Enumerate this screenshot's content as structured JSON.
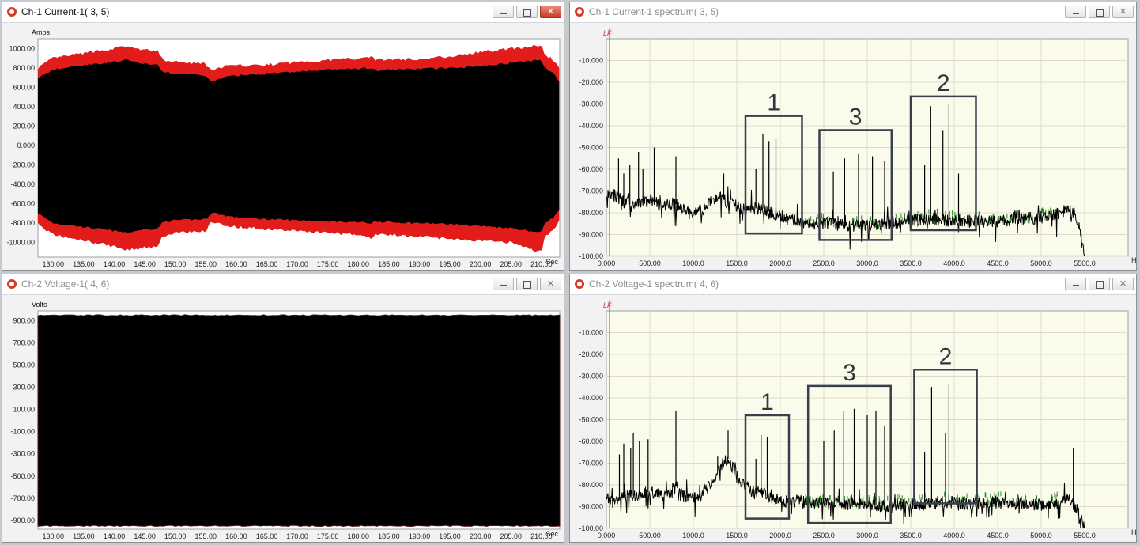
{
  "windows": {
    "current": {
      "title": "Ch-1 Current-1( 3, 5)",
      "unit": "Amps",
      "x_unit": "Sec",
      "y_ticks": [
        "1000.00",
        "800.00",
        "600.00",
        "400.00",
        "200.00",
        "0.000",
        "-200.00",
        "-400.00",
        "-600.00",
        "-800.00",
        "-1000.00"
      ],
      "x_ticks": [
        "130.00",
        "135.00",
        "140.00",
        "145.00",
        "150.00",
        "155.00",
        "160.00",
        "165.00",
        "170.00",
        "175.00",
        "180.00",
        "185.00",
        "190.00",
        "195.00",
        "200.00",
        "205.00",
        "210.00"
      ]
    },
    "current_spectrum": {
      "title": "Ch-1 Current-1 spectrum( 3, 5)",
      "marker": "LF",
      "x_unit": "Hz",
      "y_ticks": [
        "-10.000",
        "-20.000",
        "-30.000",
        "-40.000",
        "-50.000",
        "-60.000",
        "-70.000",
        "-80.000",
        "-90.000",
        "-100.00"
      ],
      "x_ticks": [
        "0.000",
        "500.00",
        "1000.0",
        "1500.0",
        "2000.0",
        "2500.0",
        "3000.0",
        "3500.0",
        "4000.0",
        "4500.0",
        "5000.0",
        "5500.0"
      ],
      "box_labels": [
        "1",
        "3",
        "2"
      ]
    },
    "voltage": {
      "title": "Ch-2 Voltage-1( 4, 6)",
      "unit": "Volts",
      "x_unit": "Sec",
      "y_ticks": [
        "900.00",
        "700.00",
        "500.00",
        "300.00",
        "100.00",
        "-100.00",
        "-300.00",
        "-500.00",
        "-700.00",
        "-900.00"
      ],
      "x_ticks": [
        "130.00",
        "135.00",
        "140.00",
        "145.00",
        "150.00",
        "155.00",
        "160.00",
        "165.00",
        "170.00",
        "175.00",
        "180.00",
        "185.00",
        "190.00",
        "195.00",
        "200.00",
        "205.00",
        "210.00"
      ]
    },
    "voltage_spectrum": {
      "title": "Ch-2 Voltage-1 spectrum( 4, 6)",
      "marker": "LF",
      "x_unit": "Hz",
      "y_ticks": [
        "-10.000",
        "-20.000",
        "-30.000",
        "-40.000",
        "-50.000",
        "-60.000",
        "-70.000",
        "-80.000",
        "-90.000",
        "-100.00"
      ],
      "x_ticks": [
        "0.000",
        "500.00",
        "1000.0",
        "1500.0",
        "2000.0",
        "2500.0",
        "3000.0",
        "3500.0",
        "4000.0",
        "4500.0",
        "5000.0",
        "5500.0"
      ],
      "box_labels": [
        "1",
        "3",
        "2"
      ]
    }
  },
  "colors": {
    "envelope": "#e21b1b",
    "trace": "#000000",
    "spectrum_bg": "#fbfbeb",
    "box": "#37404c",
    "alt_trace": "#2a8a2a"
  },
  "chart_data": [
    {
      "type": "area",
      "name": "Ch-1 Current-1( 3, 5)",
      "ylabel": "Amps",
      "xlabel": "Sec",
      "xlim": [
        127.5,
        213.0
      ],
      "ylim": [
        -1150,
        1100
      ],
      "x": [
        127.5,
        130,
        135,
        140,
        142,
        145,
        147,
        148,
        150,
        155,
        156,
        158,
        160,
        165,
        170,
        175,
        180,
        182,
        183,
        185,
        190,
        195,
        200,
        205,
        208,
        210,
        210.5,
        212,
        213
      ],
      "outer_upper": [
        800,
        900,
        950,
        1000,
        1020,
        980,
        980,
        880,
        860,
        840,
        760,
        820,
        820,
        830,
        860,
        880,
        900,
        920,
        880,
        890,
        890,
        920,
        960,
        1000,
        1020,
        1030,
        940,
        880,
        780
      ],
      "inner_upper": [
        700,
        780,
        830,
        860,
        880,
        840,
        840,
        760,
        740,
        720,
        660,
        700,
        720,
        740,
        760,
        780,
        790,
        800,
        770,
        780,
        790,
        800,
        820,
        850,
        870,
        880,
        800,
        740,
        660
      ],
      "inner_lower": [
        -700,
        -800,
        -840,
        -880,
        -900,
        -860,
        -860,
        -790,
        -770,
        -760,
        -690,
        -720,
        -740,
        -760,
        -770,
        -780,
        -790,
        -800,
        -780,
        -790,
        -800,
        -810,
        -830,
        -850,
        -880,
        -900,
        -800,
        -740,
        -660
      ],
      "outer_lower": [
        -810,
        -920,
        -980,
        -1040,
        -1080,
        -1050,
        -1050,
        -930,
        -900,
        -880,
        -780,
        -820,
        -840,
        -860,
        -880,
        -900,
        -920,
        -960,
        -910,
        -920,
        -940,
        -960,
        -980,
        -1000,
        -1060,
        -1100,
        -940,
        -870,
        -760
      ]
    },
    {
      "type": "line",
      "name": "Ch-1 Current-1 spectrum( 3, 5)",
      "xlabel": "Hz",
      "xlim": [
        0,
        6000
      ],
      "ylim": [
        -100,
        0
      ],
      "x": [
        0,
        100,
        200,
        300,
        400,
        500,
        600,
        700,
        800,
        900,
        1000,
        1100,
        1200,
        1300,
        1400,
        1500,
        1600,
        1700,
        1800,
        1900,
        2000,
        2100,
        2200,
        2300,
        2400,
        2500,
        2600,
        2800,
        3000,
        3200,
        3400,
        3600,
        3800,
        4000,
        4200,
        4400,
        4600,
        4800,
        5000,
        5200,
        5300,
        5400,
        5450,
        5500
      ],
      "y": [
        -72,
        -72,
        -75,
        -77,
        -76,
        -74,
        -76,
        -76,
        -76,
        -78,
        -80,
        -79,
        -75,
        -73,
        -75,
        -77,
        -79,
        -78,
        -78,
        -80,
        -81,
        -83,
        -84,
        -85,
        -85,
        -85,
        -85,
        -86,
        -86,
        -85,
        -84,
        -83,
        -83,
        -84,
        -84,
        -84,
        -84,
        -83,
        -82,
        -80,
        -78,
        -81,
        -90,
        -100
      ],
      "peaks": [
        {
          "x": 140,
          "y": -55
        },
        {
          "x": 200,
          "y": -62
        },
        {
          "x": 270,
          "y": -58
        },
        {
          "x": 370,
          "y": -52
        },
        {
          "x": 420,
          "y": -60
        },
        {
          "x": 550,
          "y": -50
        },
        {
          "x": 800,
          "y": -54
        },
        {
          "x": 1350,
          "y": -62
        },
        {
          "x": 1720,
          "y": -60
        },
        {
          "x": 1800,
          "y": -44
        },
        {
          "x": 1870,
          "y": -47
        },
        {
          "x": 1950,
          "y": -46
        },
        {
          "x": 2610,
          "y": -61
        },
        {
          "x": 2740,
          "y": -55
        },
        {
          "x": 2900,
          "y": -53
        },
        {
          "x": 3060,
          "y": -54
        },
        {
          "x": 3200,
          "y": -56
        },
        {
          "x": 3280,
          "y": -57
        },
        {
          "x": 3660,
          "y": -58
        },
        {
          "x": 3730,
          "y": -31
        },
        {
          "x": 3870,
          "y": -42
        },
        {
          "x": 3940,
          "y": -30
        },
        {
          "x": 4050,
          "y": -62
        },
        {
          "x": 5300,
          "y": -77
        }
      ]
    },
    {
      "type": "area",
      "name": "Ch-2 Voltage-1( 4, 6)",
      "ylabel": "Volts",
      "xlabel": "Sec",
      "xlim": [
        127.5,
        213.0
      ],
      "ylim": [
        -980,
        990
      ],
      "x": [
        127.5,
        213.0
      ],
      "upper": [
        950,
        950
      ],
      "lower": [
        -950,
        -950
      ]
    },
    {
      "type": "line",
      "name": "Ch-2 Voltage-1 spectrum( 4, 6)",
      "xlabel": "Hz",
      "xlim": [
        0,
        6000
      ],
      "ylim": [
        -100,
        0
      ],
      "x": [
        0,
        100,
        200,
        300,
        400,
        500,
        600,
        700,
        800,
        900,
        1000,
        1100,
        1200,
        1300,
        1400,
        1500,
        1600,
        1700,
        1800,
        1900,
        2000,
        2200,
        2400,
        2600,
        2800,
        3000,
        3200,
        3400,
        3600,
        3800,
        4000,
        4200,
        4400,
        4600,
        4800,
        5000,
        5200,
        5300,
        5400,
        5450,
        5500
      ],
      "y": [
        -86,
        -86,
        -86,
        -85,
        -84,
        -83,
        -84,
        -85,
        -80,
        -86,
        -86,
        -84,
        -80,
        -72,
        -68,
        -76,
        -80,
        -84,
        -84,
        -86,
        -87,
        -88,
        -88,
        -89,
        -89,
        -89,
        -90,
        -89,
        -89,
        -88,
        -88,
        -89,
        -88,
        -88,
        -89,
        -89,
        -88,
        -86,
        -90,
        -95,
        -100
      ],
      "peaks": [
        {
          "x": 150,
          "y": -66
        },
        {
          "x": 200,
          "y": -61
        },
        {
          "x": 280,
          "y": -63
        },
        {
          "x": 310,
          "y": -56
        },
        {
          "x": 380,
          "y": -60
        },
        {
          "x": 480,
          "y": -59
        },
        {
          "x": 800,
          "y": -46
        },
        {
          "x": 1280,
          "y": -67
        },
        {
          "x": 1400,
          "y": -55
        },
        {
          "x": 1720,
          "y": -68
        },
        {
          "x": 1780,
          "y": -57
        },
        {
          "x": 1850,
          "y": -58
        },
        {
          "x": 2500,
          "y": -60
        },
        {
          "x": 2620,
          "y": -55
        },
        {
          "x": 2730,
          "y": -46
        },
        {
          "x": 2850,
          "y": -45
        },
        {
          "x": 3000,
          "y": -48
        },
        {
          "x": 3100,
          "y": -46
        },
        {
          "x": 3200,
          "y": -53
        },
        {
          "x": 3660,
          "y": -65
        },
        {
          "x": 3740,
          "y": -35
        },
        {
          "x": 3900,
          "y": -56
        },
        {
          "x": 3940,
          "y": -34
        },
        {
          "x": 5370,
          "y": -63
        }
      ]
    }
  ]
}
